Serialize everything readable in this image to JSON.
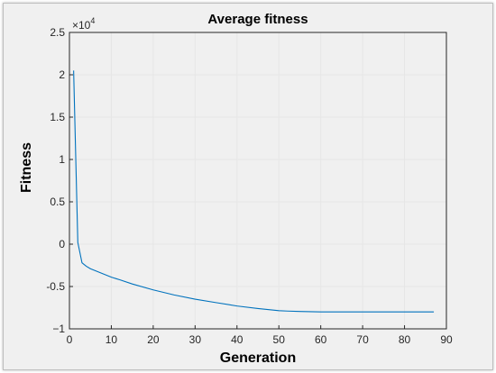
{
  "chart_data": {
    "type": "line",
    "title": "Average fitness",
    "xlabel": "Generation",
    "ylabel": "Fitness",
    "y_multiplier_label": "×10",
    "y_multiplier_exponent": "4",
    "xlim": [
      0,
      90
    ],
    "ylim": [
      -1.0,
      2.5
    ],
    "xticks": [
      "0",
      "10",
      "20",
      "30",
      "40",
      "50",
      "60",
      "70",
      "80",
      "90"
    ],
    "yticks": [
      "2.5",
      "2",
      "1.5",
      "1",
      "0.5",
      "0",
      "-0.5",
      "−1"
    ],
    "grid": true,
    "line_color": "#0072bd",
    "series": [
      {
        "x": [
          1,
          2,
          3,
          4,
          5,
          6,
          8,
          10,
          12,
          15,
          20,
          25,
          30,
          35,
          40,
          45,
          50,
          52,
          55,
          60,
          65,
          70,
          75,
          80,
          85,
          87
        ],
        "y": [
          2.05,
          0.02,
          -0.22,
          -0.26,
          -0.29,
          -0.31,
          -0.35,
          -0.39,
          -0.42,
          -0.47,
          -0.54,
          -0.6,
          -0.65,
          -0.69,
          -0.73,
          -0.76,
          -0.785,
          -0.79,
          -0.795,
          -0.8,
          -0.8,
          -0.8,
          -0.8,
          -0.8,
          -0.8,
          -0.8
        ]
      }
    ]
  }
}
